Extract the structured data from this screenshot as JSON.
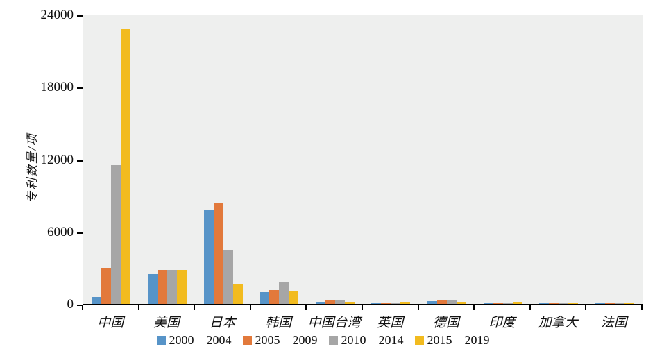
{
  "chart_data": {
    "type": "bar",
    "title": "",
    "xlabel": "",
    "ylabel": "专利数量/项",
    "ylim": [
      0,
      24000
    ],
    "yticks": [
      0,
      6000,
      12000,
      18000,
      24000
    ],
    "grid": false,
    "legend_position": "bottom",
    "plot_background": "#eeefee",
    "axis_color": "#000000",
    "categories": [
      "中国",
      "美国",
      "日本",
      "韩国",
      "中国台湾",
      "英国",
      "德国",
      "印度",
      "加拿大",
      "法国"
    ],
    "series": [
      {
        "name": "2000—2004",
        "color": "#5794c8",
        "values": [
          550,
          2500,
          7800,
          1000,
          150,
          50,
          250,
          120,
          120,
          120
        ]
      },
      {
        "name": "2005—2009",
        "color": "#e2793b",
        "values": [
          3000,
          2800,
          8400,
          1150,
          300,
          50,
          300,
          80,
          80,
          90
        ]
      },
      {
        "name": "2010—2014",
        "color": "#a6a6a6",
        "values": [
          11500,
          2800,
          4450,
          1850,
          280,
          120,
          300,
          90,
          90,
          90
        ]
      },
      {
        "name": "2015—2019",
        "color": "#f2bb1f",
        "values": [
          22800,
          2800,
          1600,
          1050,
          200,
          200,
          150,
          200,
          120,
          110
        ]
      }
    ]
  }
}
